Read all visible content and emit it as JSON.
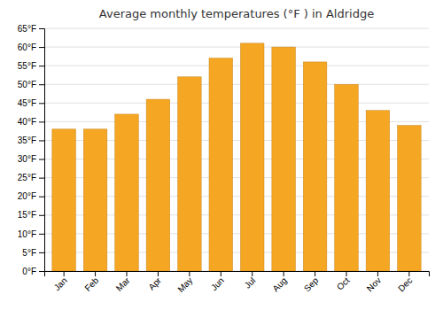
{
  "chart_data": {
    "type": "bar",
    "title": "Average monthly temperatures (°F ) in Aldridge",
    "categories": [
      "Jan",
      "Feb",
      "Mar",
      "Apr",
      "May",
      "Jun",
      "Jul",
      "Aug",
      "Sep",
      "Oct",
      "Nov",
      "Dec"
    ],
    "values": [
      38,
      38,
      42,
      46,
      52,
      57,
      61,
      60,
      56,
      50,
      43,
      39
    ],
    "color": "#F5A623",
    "ylim": [
      0,
      65
    ],
    "yticks": [
      {
        "value": 0,
        "label": "0°F"
      },
      {
        "value": 5,
        "label": "5°F"
      },
      {
        "value": 10,
        "label": "10°F"
      },
      {
        "value": 15,
        "label": "15°F"
      },
      {
        "value": 20,
        "label": "20°F"
      },
      {
        "value": 25,
        "label": "25°F"
      },
      {
        "value": 30,
        "label": "30°F"
      },
      {
        "value": 35,
        "label": "35°F"
      },
      {
        "value": 40,
        "label": "40°F"
      },
      {
        "value": 45,
        "label": "45°F"
      },
      {
        "value": 50,
        "label": "50°F"
      },
      {
        "value": 55,
        "label": "55°F"
      },
      {
        "value": 60,
        "label": "60°F"
      },
      {
        "value": 65,
        "label": "65°F"
      }
    ],
    "grid": true
  }
}
